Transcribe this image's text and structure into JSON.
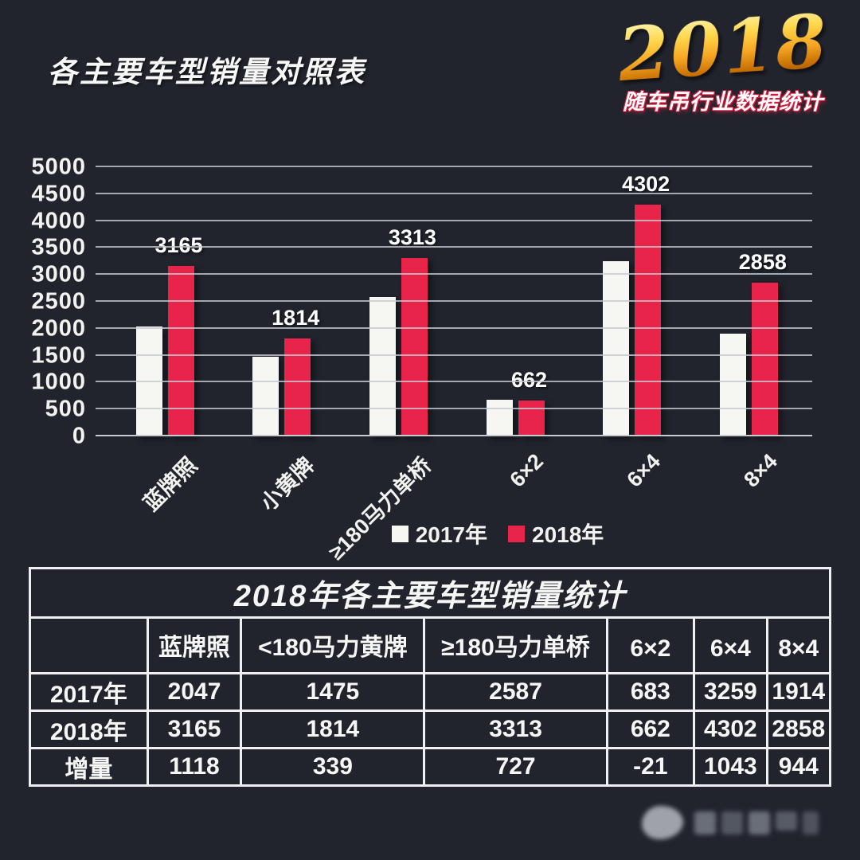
{
  "page": {
    "title": "各主要车型销量对照表",
    "logo_year": "2018",
    "logo_subtitle": "随车吊行业数据统计"
  },
  "colors": {
    "background": "#21242d",
    "bar_2017_white": "#f6f6f3",
    "bar_2018_red": "#e8244a",
    "gridline": "#c6cad1",
    "table_border": "#eef0f2",
    "logo_gold": "#f5a623",
    "text": "#f6f6f4"
  },
  "chart_data": {
    "type": "bar",
    "categories": [
      "蓝牌照",
      "小黄牌",
      "≥180马力单桥",
      "6×2",
      "6×4",
      "8×4"
    ],
    "series": [
      {
        "name": "2017年",
        "color": "#f6f6f3",
        "values": [
          2047,
          1475,
          2587,
          683,
          3259,
          1914
        ]
      },
      {
        "name": "2018年",
        "color": "#e8244a",
        "values": [
          3165,
          1814,
          3313,
          662,
          4302,
          2858
        ]
      }
    ],
    "bar_labels": [
      "3165",
      "1814",
      "3313",
      "662",
      "4302",
      "2858"
    ],
    "bar_labels_on": "2018年 series only",
    "ylim": [
      0,
      5000
    ],
    "ytick_step": 500,
    "yticks": [
      "0",
      "500",
      "1000",
      "1500",
      "2000",
      "2500",
      "3000",
      "3500",
      "4000",
      "4500",
      "5000"
    ],
    "grid": true,
    "legend_position": "bottom-center"
  },
  "legend": {
    "items": [
      {
        "label": "2017年",
        "color": "#f6f6f3"
      },
      {
        "label": "2018年",
        "color": "#e8244a"
      }
    ]
  },
  "table": {
    "title": "2018年各主要车型销量统计",
    "columns": [
      "",
      "蓝牌照",
      "<180马力黄牌",
      "≥180马力单桥",
      "6×2",
      "6×4",
      "8×4"
    ],
    "rows": [
      {
        "label": "2017年",
        "values": [
          "2047",
          "1475",
          "2587",
          "683",
          "3259",
          "1914"
        ]
      },
      {
        "label": "2018年",
        "values": [
          "3165",
          "1814",
          "3313",
          "662",
          "4302",
          "2858"
        ]
      },
      {
        "label": "增量",
        "values": [
          "1118",
          "339",
          "727",
          "-21",
          "1043",
          "944"
        ]
      }
    ]
  },
  "watermark": {
    "icon": "blurred-publisher-logo"
  }
}
